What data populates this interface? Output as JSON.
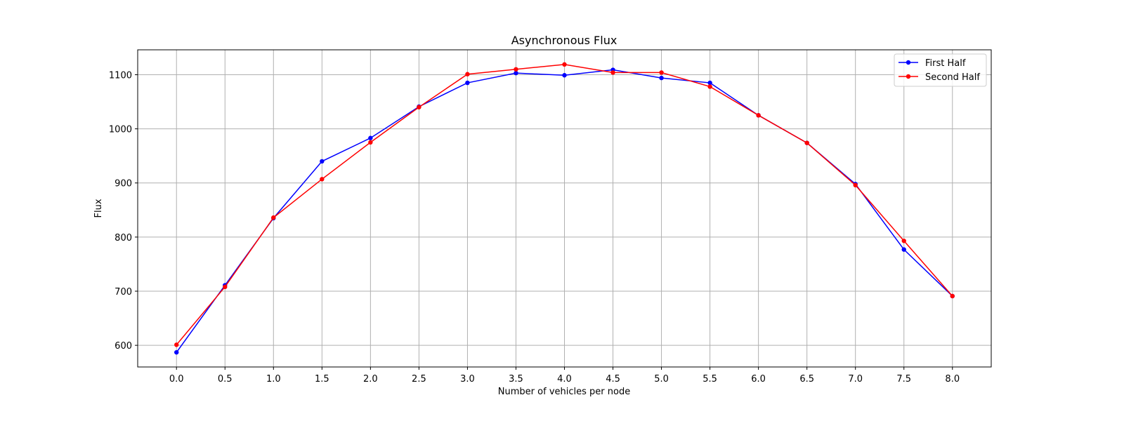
{
  "chart_data": {
    "type": "line",
    "title": "Asynchronous Flux",
    "xlabel": "Number of vehicles per node",
    "ylabel": "Flux",
    "x": [
      0.0,
      0.5,
      1.0,
      1.5,
      2.0,
      2.5,
      3.0,
      3.5,
      4.0,
      4.5,
      5.0,
      5.5,
      6.0,
      6.5,
      7.0,
      7.5,
      8.0
    ],
    "x_ticks": [
      "0.0",
      "0.5",
      "1.0",
      "1.5",
      "2.0",
      "2.5",
      "3.0",
      "3.5",
      "4.0",
      "4.5",
      "5.0",
      "5.5",
      "6.0",
      "6.5",
      "7.0",
      "7.5",
      "8.0"
    ],
    "y_ticks": [
      "600",
      "700",
      "800",
      "900",
      "1000",
      "1100"
    ],
    "xlim": [
      -0.4,
      8.4
    ],
    "ylim": [
      560,
      1146
    ],
    "grid": true,
    "legend_position": "top-right",
    "series": [
      {
        "name": "First Half",
        "color": "#0000ff",
        "values": [
          587,
          711,
          835,
          940,
          983,
          1041,
          1085,
          1103,
          1099,
          1109,
          1094,
          1085,
          1025,
          974,
          898,
          777,
          691
        ]
      },
      {
        "name": "Second Half",
        "color": "#ff0000",
        "values": [
          601,
          708,
          836,
          907,
          975,
          1040,
          1101,
          1110,
          1119,
          1104,
          1104,
          1078,
          1025,
          974,
          896,
          793,
          691
        ]
      }
    ]
  }
}
